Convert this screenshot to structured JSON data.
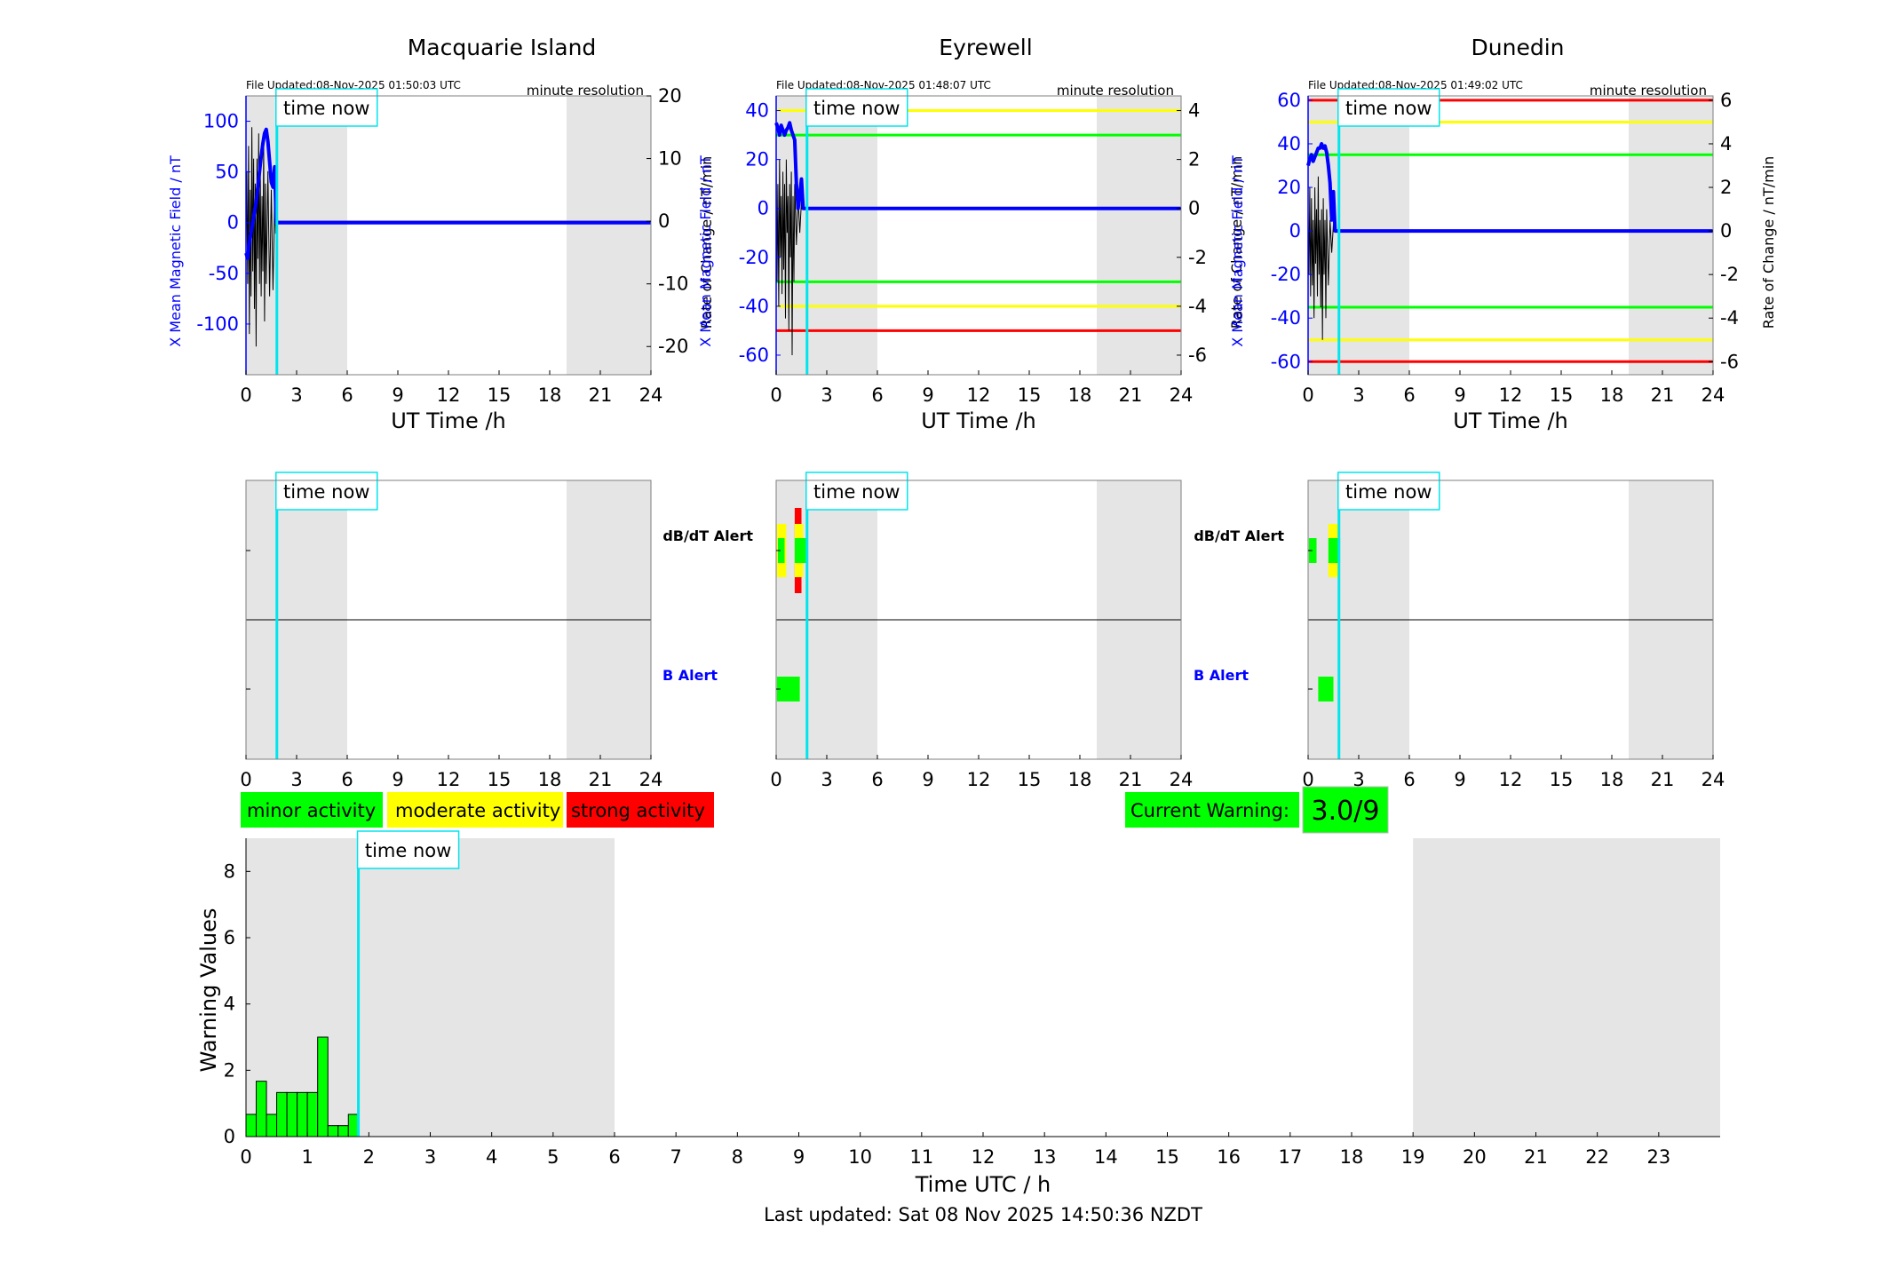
{
  "labels": {
    "time_now": "time now",
    "dbdt_alert": "dB/dT Alert",
    "b_alert": "B Alert",
    "ut_time": "UT Time /h",
    "x_field": "X Mean Magnetic Field / nT",
    "rate": "Rate of Change / nT/min",
    "minute_resolution": "minute resolution",
    "warning_values": "Warning Values",
    "time_utc": "Time UTC / h",
    "last_updated": "Last updated: Sat 08 Nov 2025 14:50:36 NZDT"
  },
  "legend": [
    {
      "label": "minor activity",
      "color": "#00ff00"
    },
    {
      "label": "moderate activity",
      "color": "#ffff00"
    },
    {
      "label": "strong activity",
      "color": "#ff0000"
    }
  ],
  "current_warning": {
    "label": "Current Warning:",
    "value": "3.0/9",
    "color": "#00ff00"
  },
  "colors": {
    "field_line": "#0000ff",
    "rate_line": "#000000",
    "now_line": "#00e5ee",
    "night_shade": "#e5e5e5",
    "minor": "#00ff00",
    "moderate": "#ffff00",
    "strong": "#ff0000"
  },
  "chart_data": [
    {
      "type": "line",
      "station": "Macquarie Island",
      "file_updated": "File Updated:08-Nov-2025 01:50:03 UTC",
      "xlim": [
        0,
        24
      ],
      "xticks": [
        0,
        3,
        6,
        9,
        12,
        15,
        18,
        21,
        24
      ],
      "ylim_left": [
        -150,
        125
      ],
      "yticks_left": [
        -100,
        -50,
        0,
        50,
        100
      ],
      "ylim_right": [
        -24.5,
        20
      ],
      "yticks_right": [
        -20,
        -10,
        0,
        10,
        20
      ],
      "now_hour": 1.83,
      "shade": [
        [
          0,
          6
        ],
        [
          19,
          24
        ]
      ],
      "threshold_lines": [],
      "field_series": [
        [
          0,
          -30
        ],
        [
          0.1,
          -35
        ],
        [
          0.2,
          -20
        ],
        [
          0.3,
          -10
        ],
        [
          0.4,
          0
        ],
        [
          0.5,
          10
        ],
        [
          0.6,
          20
        ],
        [
          0.7,
          35
        ],
        [
          0.8,
          50
        ],
        [
          0.9,
          65
        ],
        [
          1.0,
          78
        ],
        [
          1.1,
          88
        ],
        [
          1.2,
          92
        ],
        [
          1.3,
          80
        ],
        [
          1.4,
          60
        ],
        [
          1.5,
          40
        ],
        [
          1.6,
          35
        ],
        [
          1.7,
          55
        ],
        [
          1.8,
          0
        ],
        [
          24,
          0
        ]
      ],
      "rate_series": [
        [
          0,
          -5
        ],
        [
          0.05,
          8
        ],
        [
          0.1,
          -10
        ],
        [
          0.15,
          12
        ],
        [
          0.2,
          -18
        ],
        [
          0.25,
          5
        ],
        [
          0.3,
          -12
        ],
        [
          0.35,
          15
        ],
        [
          0.4,
          -8
        ],
        [
          0.45,
          10
        ],
        [
          0.5,
          -14
        ],
        [
          0.55,
          6
        ],
        [
          0.6,
          -20
        ],
        [
          0.65,
          10
        ],
        [
          0.7,
          -6
        ],
        [
          0.75,
          14
        ],
        [
          0.8,
          -10
        ],
        [
          0.85,
          8
        ],
        [
          0.9,
          -12
        ],
        [
          0.95,
          4
        ],
        [
          1.0,
          -8
        ],
        [
          1.05,
          12
        ],
        [
          1.1,
          -16
        ],
        [
          1.15,
          6
        ],
        [
          1.2,
          -10
        ],
        [
          1.3,
          8
        ],
        [
          1.4,
          -12
        ],
        [
          1.5,
          5
        ],
        [
          1.6,
          -11
        ],
        [
          1.7,
          3
        ],
        [
          1.75,
          -2
        ],
        [
          1.8,
          0
        ],
        [
          24,
          0
        ]
      ],
      "dbdt_alerts": [],
      "b_alerts": []
    },
    {
      "type": "line",
      "station": "Eyrewell",
      "file_updated": "File Updated:08-Nov-2025 01:48:07 UTC",
      "xlim": [
        0,
        24
      ],
      "xticks": [
        0,
        3,
        6,
        9,
        12,
        15,
        18,
        21,
        24
      ],
      "ylim_left": [
        -68,
        46
      ],
      "yticks_left": [
        -60,
        -40,
        -20,
        0,
        20,
        40
      ],
      "ylim_right": [
        -6.8,
        4.6
      ],
      "yticks_right": [
        -6,
        -4,
        -2,
        0,
        2,
        4
      ],
      "now_hour": 1.83,
      "shade": [
        [
          0,
          6
        ],
        [
          19,
          24
        ]
      ],
      "threshold_lines": [
        {
          "value": 40,
          "color": "#ffff00"
        },
        {
          "value": 30,
          "color": "#00ff00"
        },
        {
          "value": -30,
          "color": "#00ff00"
        },
        {
          "value": -40,
          "color": "#ffff00"
        },
        {
          "value": -50,
          "color": "#ff0000"
        }
      ],
      "field_series": [
        [
          0,
          35
        ],
        [
          0.1,
          33
        ],
        [
          0.2,
          30
        ],
        [
          0.3,
          34
        ],
        [
          0.4,
          32
        ],
        [
          0.5,
          30
        ],
        [
          0.6,
          32
        ],
        [
          0.7,
          33
        ],
        [
          0.8,
          35
        ],
        [
          0.9,
          32
        ],
        [
          1.0,
          30
        ],
        [
          1.1,
          28
        ],
        [
          1.2,
          10
        ],
        [
          1.3,
          0
        ],
        [
          1.4,
          5
        ],
        [
          1.5,
          12
        ],
        [
          1.6,
          0
        ],
        [
          24,
          0
        ]
      ],
      "rate_series": [
        [
          0,
          2
        ],
        [
          0.05,
          -3
        ],
        [
          0.1,
          1
        ],
        [
          0.15,
          -4
        ],
        [
          0.2,
          2
        ],
        [
          0.25,
          -2
        ],
        [
          0.3,
          0.5
        ],
        [
          0.35,
          -3.5
        ],
        [
          0.4,
          1.5
        ],
        [
          0.45,
          -2.5
        ],
        [
          0.5,
          1
        ],
        [
          0.55,
          -4.5
        ],
        [
          0.6,
          2
        ],
        [
          0.65,
          -1
        ],
        [
          0.7,
          0.5
        ],
        [
          0.75,
          -5
        ],
        [
          0.8,
          1
        ],
        [
          0.85,
          -2
        ],
        [
          0.9,
          1.5
        ],
        [
          0.95,
          -6
        ],
        [
          1.0,
          0.5
        ],
        [
          1.05,
          -3
        ],
        [
          1.1,
          1
        ],
        [
          1.2,
          -1.5
        ],
        [
          1.3,
          0.5
        ],
        [
          1.4,
          -1
        ],
        [
          1.5,
          0.3
        ],
        [
          1.6,
          0
        ],
        [
          24,
          0
        ]
      ],
      "dbdt_alerts": [
        {
          "start": 0.05,
          "end": 0.6,
          "color": "#ffff00",
          "level": 2
        },
        {
          "start": 0.1,
          "end": 0.5,
          "color": "#00ff00",
          "level": 1
        },
        {
          "start": 1.1,
          "end": 1.5,
          "color": "#ff0000",
          "level": 3
        },
        {
          "start": 1.1,
          "end": 1.6,
          "color": "#ffff00",
          "level": 2
        },
        {
          "start": 1.1,
          "end": 1.8,
          "color": "#00ff00",
          "level": 1
        }
      ],
      "b_alerts": [
        {
          "start": 0.05,
          "end": 1.4,
          "color": "#00ff00",
          "level": 1
        }
      ]
    },
    {
      "type": "line",
      "station": "Dunedin",
      "file_updated": "File Updated:08-Nov-2025 01:49:02 UTC",
      "xlim": [
        0,
        24
      ],
      "xticks": [
        0,
        3,
        6,
        9,
        12,
        15,
        18,
        21,
        24
      ],
      "ylim_left": [
        -66,
        62
      ],
      "yticks_left": [
        -60,
        -40,
        -20,
        0,
        20,
        40,
        60
      ],
      "ylim_right": [
        -6.6,
        6.2
      ],
      "yticks_right": [
        -6,
        -4,
        -2,
        0,
        2,
        4,
        6
      ],
      "now_hour": 1.83,
      "shade": [
        [
          0,
          6
        ],
        [
          19,
          24
        ]
      ],
      "threshold_lines": [
        {
          "value": 60,
          "color": "#ff0000"
        },
        {
          "value": 50,
          "color": "#ffff00"
        },
        {
          "value": 35,
          "color": "#00ff00"
        },
        {
          "value": -35,
          "color": "#00ff00"
        },
        {
          "value": -50,
          "color": "#ffff00"
        },
        {
          "value": -60,
          "color": "#ff0000"
        }
      ],
      "field_series": [
        [
          0,
          30
        ],
        [
          0.1,
          33
        ],
        [
          0.2,
          35
        ],
        [
          0.3,
          32
        ],
        [
          0.4,
          34
        ],
        [
          0.5,
          36
        ],
        [
          0.6,
          38
        ],
        [
          0.7,
          38
        ],
        [
          0.8,
          40
        ],
        [
          0.9,
          38
        ],
        [
          1.0,
          39
        ],
        [
          1.1,
          36
        ],
        [
          1.2,
          30
        ],
        [
          1.3,
          22
        ],
        [
          1.4,
          5
        ],
        [
          1.5,
          18
        ],
        [
          1.6,
          0
        ],
        [
          24,
          0
        ]
      ],
      "rate_series": [
        [
          0,
          1
        ],
        [
          0.05,
          -2
        ],
        [
          0.1,
          2
        ],
        [
          0.15,
          -3
        ],
        [
          0.2,
          1.5
        ],
        [
          0.25,
          -2.5
        ],
        [
          0.3,
          0.5
        ],
        [
          0.35,
          -4
        ],
        [
          0.4,
          2
        ],
        [
          0.45,
          -1.5
        ],
        [
          0.5,
          1
        ],
        [
          0.55,
          -3
        ],
        [
          0.6,
          2.5
        ],
        [
          0.65,
          -2
        ],
        [
          0.7,
          0.5
        ],
        [
          0.75,
          -3.5
        ],
        [
          0.8,
          1
        ],
        [
          0.85,
          -5
        ],
        [
          0.9,
          1.5
        ],
        [
          0.95,
          -2
        ],
        [
          1.0,
          0.5
        ],
        [
          1.05,
          -4
        ],
        [
          1.1,
          1
        ],
        [
          1.2,
          -2.5
        ],
        [
          1.3,
          0.5
        ],
        [
          1.4,
          -1
        ],
        [
          1.5,
          0.3
        ],
        [
          1.6,
          0
        ],
        [
          24,
          0
        ]
      ],
      "dbdt_alerts": [
        {
          "start": 0.05,
          "end": 0.5,
          "color": "#00ff00",
          "level": 1
        },
        {
          "start": 1.2,
          "end": 1.8,
          "color": "#ffff00",
          "level": 2
        },
        {
          "start": 1.2,
          "end": 1.9,
          "color": "#00ff00",
          "level": 1
        }
      ],
      "b_alerts": [
        {
          "start": 0.6,
          "end": 1.5,
          "color": "#00ff00",
          "level": 1
        }
      ]
    },
    {
      "type": "bar",
      "xlabel": "Time UTC / h",
      "ylabel": "Warning Values",
      "xlim": [
        0,
        24
      ],
      "xticks": [
        0,
        1,
        2,
        3,
        4,
        5,
        6,
        7,
        8,
        9,
        10,
        11,
        12,
        13,
        14,
        15,
        16,
        17,
        18,
        19,
        20,
        21,
        22,
        23
      ],
      "ylim": [
        0,
        9
      ],
      "yticks": [
        0,
        2,
        4,
        6,
        8
      ],
      "now_hour": 1.83,
      "shade": [
        [
          0,
          6
        ],
        [
          19,
          24
        ]
      ],
      "bar_width": 0.1667,
      "x": [
        0.0833,
        0.25,
        0.4167,
        0.5833,
        0.75,
        0.9167,
        1.0833,
        1.25,
        1.4167,
        1.5833,
        1.75
      ],
      "values": [
        0.67,
        1.67,
        0.67,
        1.33,
        1.33,
        1.33,
        1.33,
        3.0,
        0.33,
        0.33,
        0.67
      ],
      "bar_color": "#00ff00"
    }
  ]
}
